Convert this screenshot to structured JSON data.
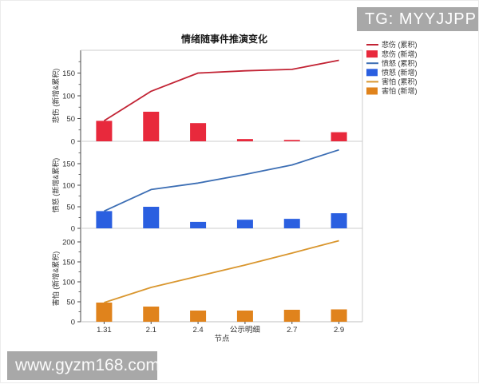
{
  "badge": {
    "text": "TG: MYYJJPP",
    "bg": "#a8a8a8",
    "fg": "#ffffff"
  },
  "watermark": {
    "text": "www.gyzm168.com",
    "bg": "#a8a8a8",
    "fg": "#fafafa"
  },
  "chart_data": {
    "type": "bar",
    "title": "情绪随事件推演变化",
    "xlabel": "节点",
    "categories": [
      "1.31",
      "2.1",
      "2.4",
      "公示明细",
      "2.7",
      "2.9"
    ],
    "subplots": [
      {
        "key": "sad",
        "ylabel": "悲伤 (新增&累积)",
        "bar_series_name": "悲伤 (新增)",
        "line_series_name": "悲伤 (累积)",
        "bars": [
          45,
          65,
          40,
          5,
          3,
          20
        ],
        "line": [
          45,
          110,
          150,
          155,
          158,
          178
        ],
        "yticks": [
          0,
          50,
          100,
          150
        ],
        "ylim": [
          0,
          200
        ],
        "bar_color": "#e8293c",
        "line_color": "#c22334"
      },
      {
        "key": "anger",
        "ylabel": "愤怒 (新增&累积)",
        "bar_series_name": "愤怒 (新增)",
        "line_series_name": "愤怒 (累积)",
        "bars": [
          40,
          50,
          15,
          20,
          22,
          35
        ],
        "line": [
          40,
          90,
          105,
          125,
          147,
          182
        ],
        "yticks": [
          0,
          50,
          100,
          150
        ],
        "ylim": [
          0,
          200
        ],
        "bar_color": "#2a5fe0",
        "line_color": "#3c6eb4"
      },
      {
        "key": "fear",
        "ylabel": "害怕 (新增&累积)",
        "bar_series_name": "害怕 (新增)",
        "line_series_name": "害怕 (累积)",
        "bars": [
          48,
          38,
          28,
          28,
          30,
          31
        ],
        "line": [
          48,
          86,
          114,
          142,
          172,
          203
        ],
        "yticks": [
          0,
          50,
          100,
          150,
          200
        ],
        "ylim": [
          0,
          218
        ],
        "bar_color": "#e0831c",
        "line_color": "#d9962e"
      }
    ],
    "legend": [
      {
        "label": "悲伤 (累积)",
        "type": "line",
        "color": "#c22334"
      },
      {
        "label": "悲伤 (新增)",
        "type": "bar",
        "color": "#e8293c"
      },
      {
        "label": "愤怒 (累积)",
        "type": "line",
        "color": "#3c6eb4"
      },
      {
        "label": "愤怒 (新增)",
        "type": "bar",
        "color": "#2a5fe0"
      },
      {
        "label": "害怕 (累积)",
        "type": "line",
        "color": "#d9962e"
      },
      {
        "label": "害怕 (新增)",
        "type": "bar",
        "color": "#e0831c"
      }
    ],
    "legend_position": "right-outside-top",
    "grid": false,
    "spine_color_light": "#cccccc",
    "spine_color_dark": "#4a4a4a"
  }
}
